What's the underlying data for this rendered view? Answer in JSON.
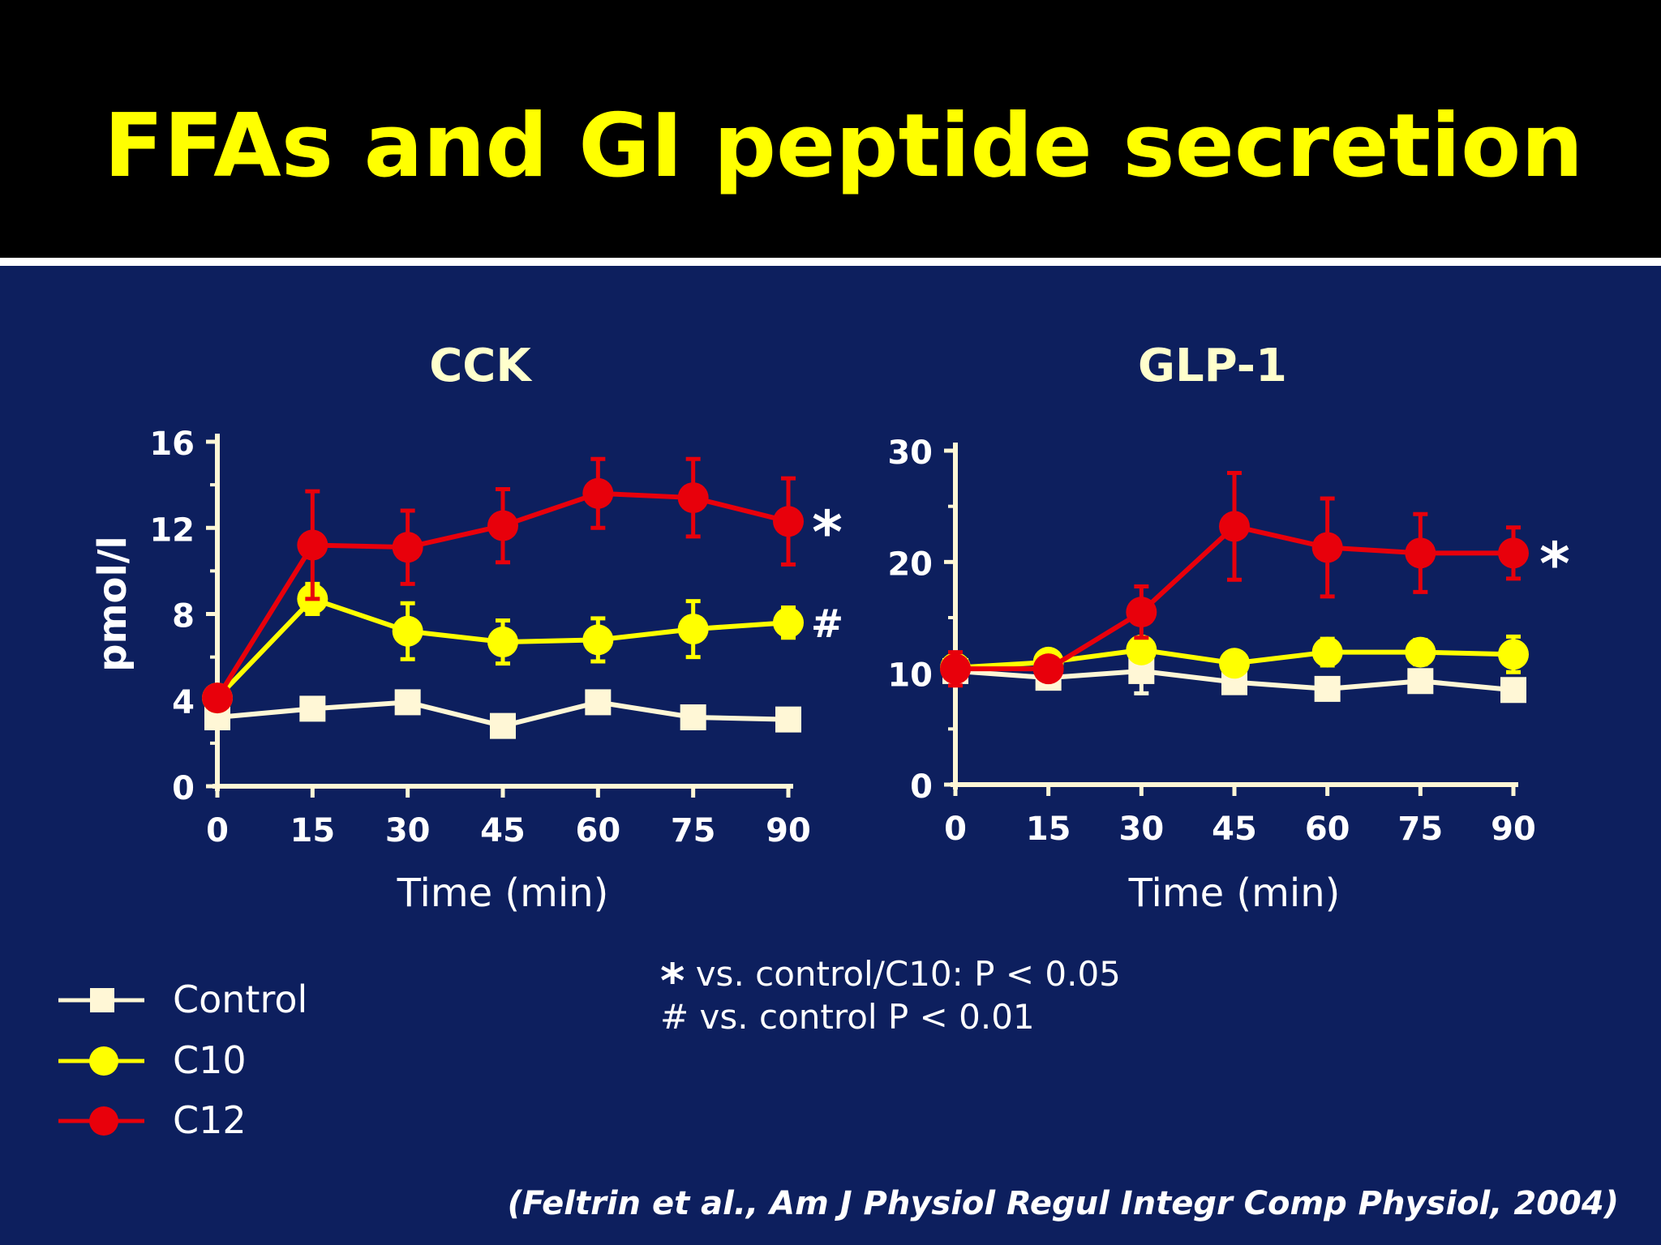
{
  "slide": {
    "title": "FFAs and GI peptide secretion",
    "citation": "(Feltrin et al., Am J Physiol Regul Integr Comp Physiol, 2004)"
  },
  "colors": {
    "background": "#0d1f5e",
    "title": "#ffff00",
    "control": "#fff7d6",
    "c10": "#ffff00",
    "c12": "#e8000b",
    "axis": "#fff7d6",
    "chart_title": "#ffffcc"
  },
  "legend": [
    {
      "label": "Control",
      "marker": "square",
      "color": "#fff7d6"
    },
    {
      "label": "C10",
      "marker": "circle",
      "color": "#ffff00"
    },
    {
      "label": "C12",
      "marker": "circle",
      "color": "#e8000b"
    }
  ],
  "notes": {
    "star_symbol": "*",
    "star_text": "vs. control/C10: P < 0.05",
    "hash_text": "# vs. control P < 0.01"
  },
  "chart_data": [
    {
      "type": "line",
      "title": "CCK",
      "xlabel": "Time (min)",
      "ylabel": "pmol/l",
      "x": [
        0,
        15,
        30,
        45,
        60,
        75,
        90
      ],
      "xticks": [
        "0",
        "15",
        "30",
        "45",
        "60",
        "75",
        "90"
      ],
      "yticks": [
        "0",
        "4",
        "8",
        "12",
        "16"
      ],
      "ylim": [
        0,
        16
      ],
      "series": [
        {
          "name": "Control",
          "values": [
            3.2,
            3.6,
            3.9,
            2.8,
            3.9,
            3.2,
            3.1
          ],
          "errors": [
            0,
            0,
            0,
            0,
            0,
            0,
            0
          ]
        },
        {
          "name": "C10",
          "values": [
            4.1,
            8.7,
            7.2,
            6.7,
            6.8,
            7.3,
            7.6
          ],
          "errors": [
            0,
            0.7,
            1.3,
            1.0,
            1.0,
            1.3,
            0.7
          ],
          "annotation": "#"
        },
        {
          "name": "C12",
          "values": [
            4.1,
            11.2,
            11.1,
            12.1,
            13.6,
            13.4,
            12.3
          ],
          "errors": [
            0,
            2.5,
            1.7,
            1.7,
            1.6,
            1.8,
            2.0
          ],
          "annotation": "*"
        }
      ]
    },
    {
      "type": "line",
      "title": "GLP-1",
      "xlabel": "Time (min)",
      "ylabel": "",
      "x": [
        0,
        15,
        30,
        45,
        60,
        75,
        90
      ],
      "xticks": [
        "0",
        "15",
        "30",
        "45",
        "60",
        "75",
        "90"
      ],
      "yticks": [
        "0",
        "10",
        "20",
        "30"
      ],
      "ylim": [
        0,
        30
      ],
      "series": [
        {
          "name": "Control",
          "values": [
            10.2,
            9.6,
            10.2,
            9.2,
            8.6,
            9.3,
            8.5
          ],
          "errors": [
            0,
            0.6,
            2.0,
            0,
            0.6,
            0.9,
            0.7
          ]
        },
        {
          "name": "C10",
          "values": [
            10.5,
            11.0,
            12.1,
            10.9,
            11.9,
            11.9,
            11.7
          ],
          "errors": [
            1.0,
            0,
            0.8,
            0.9,
            1.2,
            1.1,
            1.6
          ]
        },
        {
          "name": "C12",
          "values": [
            10.4,
            10.4,
            15.5,
            23.2,
            21.3,
            20.8,
            20.8
          ],
          "errors": [
            1.5,
            0,
            2.3,
            4.8,
            4.4,
            3.5,
            2.3
          ],
          "annotation": "*"
        }
      ]
    }
  ]
}
